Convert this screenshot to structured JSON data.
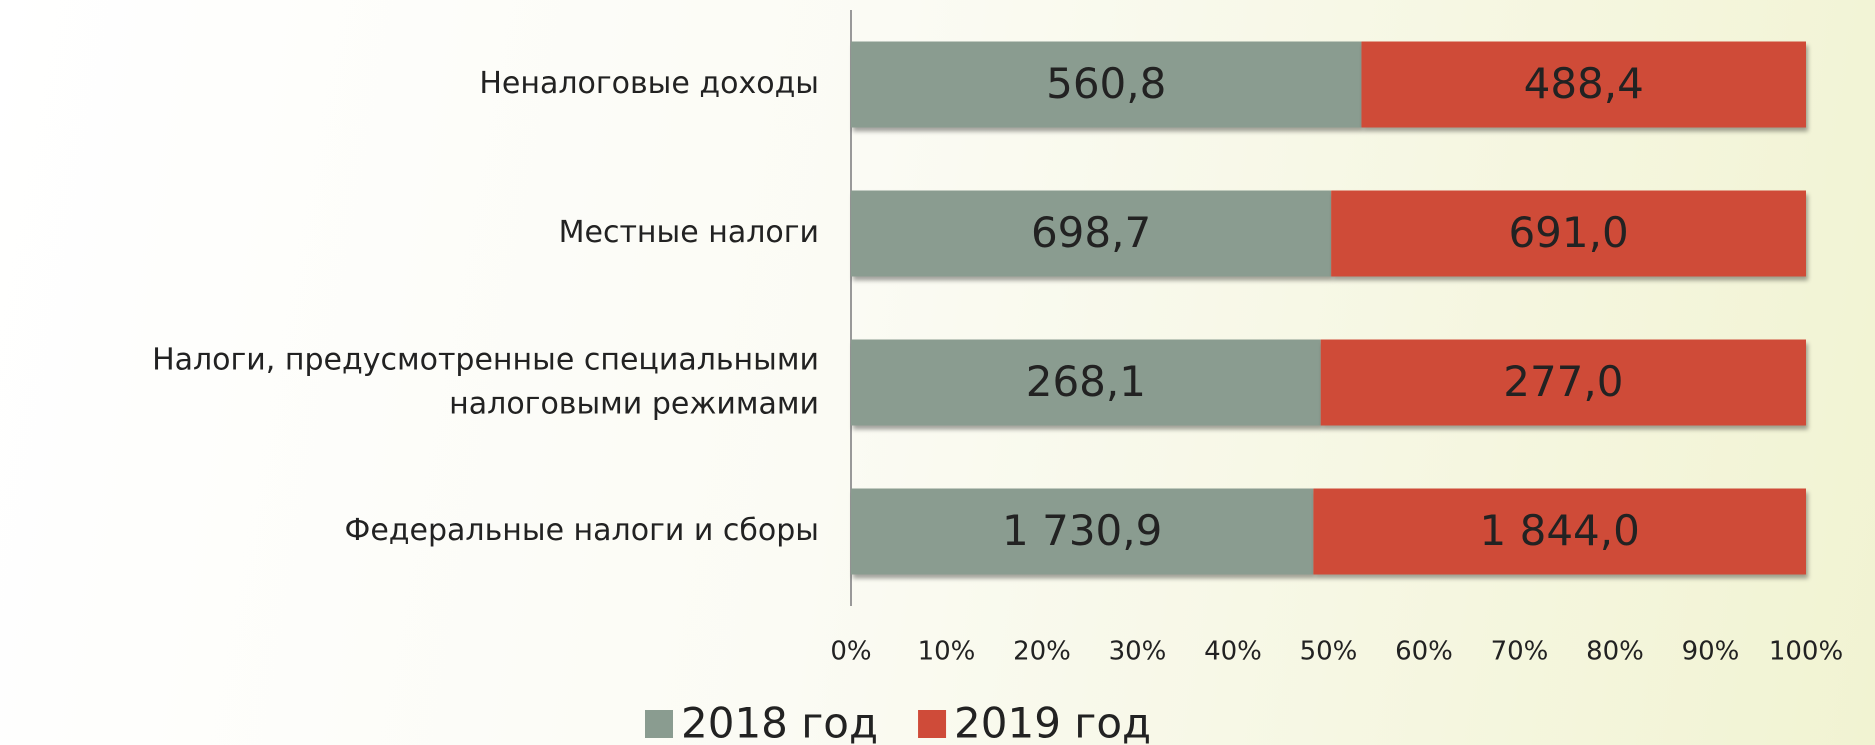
{
  "chart_data": {
    "type": "bar",
    "orientation": "horizontal",
    "stacking": "percent",
    "categories": [
      "Неналоговые доходы",
      "Местные налоги",
      "Налоги, предусмотренные специальными\nналоговыми режимами",
      "Федеральные налоги и сборы"
    ],
    "series": [
      {
        "name": "2018 год",
        "color": "#8a9c90",
        "values": [
          560.8,
          698.7,
          268.1,
          1730.9
        ],
        "value_labels": [
          "560,8",
          "698,7",
          "268,1",
          "1 730,9"
        ]
      },
      {
        "name": "2019 год",
        "color": "#cf4b39",
        "values": [
          488.4,
          691.0,
          277.0,
          1844.0
        ],
        "value_labels": [
          "488,4",
          "691,0",
          "277,0",
          "1 844,0"
        ]
      }
    ],
    "xlim": [
      0,
      100
    ],
    "xticks": [
      {
        "value": 0,
        "label": "0%"
      },
      {
        "value": 10,
        "label": "10%"
      },
      {
        "value": 20,
        "label": "20%"
      },
      {
        "value": 30,
        "label": "30%"
      },
      {
        "value": 40,
        "label": "40%"
      },
      {
        "value": 50,
        "label": "50%"
      },
      {
        "value": 60,
        "label": "60%"
      },
      {
        "value": 70,
        "label": "70%"
      },
      {
        "value": 80,
        "label": "80%"
      },
      {
        "value": 90,
        "label": "90%"
      },
      {
        "value": 100,
        "label": "100%"
      }
    ],
    "grid": false,
    "legend": "bottom"
  }
}
